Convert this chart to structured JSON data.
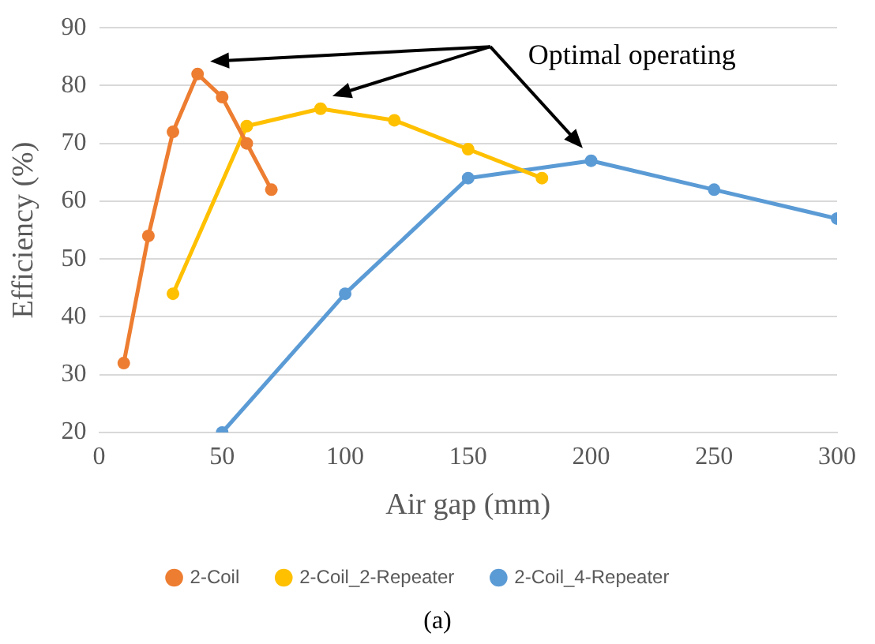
{
  "chart_data": {
    "type": "line",
    "xlabel": "Air gap (mm)",
    "ylabel": "Efficiency (%)",
    "xlim": [
      0,
      300
    ],
    "xticks": [
      0,
      50,
      100,
      150,
      200,
      250,
      300
    ],
    "ylim": [
      20,
      90
    ],
    "yticks": [
      20,
      30,
      40,
      50,
      60,
      70,
      80,
      90
    ],
    "grid": "y",
    "legend": "bottom",
    "marker": "circle",
    "line_style": "solid",
    "series": [
      {
        "name": "2-Coil",
        "color": "#ed7d31",
        "x": [
          10,
          20,
          30,
          40,
          50,
          60,
          70
        ],
        "values": [
          32,
          54,
          72,
          82,
          78,
          70,
          62
        ]
      },
      {
        "name": "2-Coil_2-Repeater",
        "color": "#ffc000",
        "x": [
          30,
          60,
          90,
          120,
          150,
          180
        ],
        "values": [
          44,
          73,
          76,
          74,
          69,
          64
        ]
      },
      {
        "name": "2-Coil_4-Repeater",
        "color": "#5b9bd5",
        "x": [
          50,
          100,
          150,
          200,
          250,
          300
        ],
        "values": [
          20,
          44,
          64,
          67,
          62,
          57
        ]
      }
    ],
    "annotations": [
      "Optimal operating",
      "(a)"
    ]
  }
}
